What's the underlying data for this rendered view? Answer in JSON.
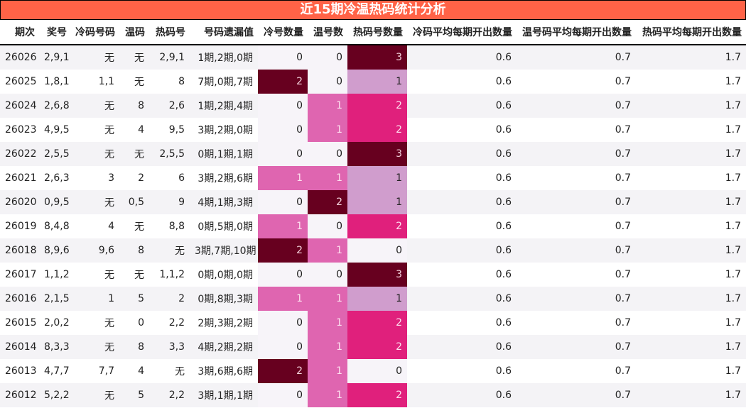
{
  "title": "近15期冷温热码统计分析",
  "headers": [
    "期次",
    "奖号",
    "冷码号码",
    "温码",
    "热码号",
    "号码遗漏值",
    "冷号数量",
    "温号数",
    "热码号数量",
    "冷码平均每期开出数量",
    "温号码平均每期开出数量",
    "热码平均每期开出数量"
  ],
  "colors": {
    "title_bg": "#ff6347",
    "dark": "#67001f",
    "pink": "#df65b0",
    "magenta": "#e0207c",
    "lavender": "#d09dcd"
  },
  "rows": [
    [
      "26026",
      "2,9,1",
      "无",
      "无",
      "2,9,1",
      "1期,2期,0期",
      "0",
      "0",
      "3",
      "0.6",
      "0.7",
      "1.7"
    ],
    [
      "26025",
      "1,8,1",
      "1,1",
      "无",
      "8",
      "7期,0期,7期",
      "2",
      "0",
      "1",
      "0.6",
      "0.7",
      "1.7"
    ],
    [
      "26024",
      "2,6,8",
      "无",
      "8",
      "2,6",
      "1期,2期,4期",
      "0",
      "1",
      "2",
      "0.6",
      "0.7",
      "1.7"
    ],
    [
      "26023",
      "4,9,5",
      "无",
      "4",
      "9,5",
      "3期,2期,0期",
      "0",
      "1",
      "2",
      "0.6",
      "0.7",
      "1.7"
    ],
    [
      "26022",
      "2,5,5",
      "无",
      "无",
      "2,5,5",
      "0期,1期,1期",
      "0",
      "0",
      "3",
      "0.6",
      "0.7",
      "1.7"
    ],
    [
      "26021",
      "2,6,3",
      "3",
      "2",
      "6",
      "3期,2期,6期",
      "1",
      "1",
      "1",
      "0.6",
      "0.7",
      "1.7"
    ],
    [
      "26020",
      "0,9,5",
      "无",
      "0,5",
      "9",
      "4期,1期,3期",
      "0",
      "2",
      "1",
      "0.6",
      "0.7",
      "1.7"
    ],
    [
      "26019",
      "8,4,8",
      "4",
      "无",
      "8,8",
      "0期,5期,0期",
      "1",
      "0",
      "2",
      "0.6",
      "0.7",
      "1.7"
    ],
    [
      "26018",
      "8,9,6",
      "9,6",
      "8",
      "无",
      "3期,7期,10期",
      "2",
      "1",
      "0",
      "0.6",
      "0.7",
      "1.7"
    ],
    [
      "26017",
      "1,1,2",
      "无",
      "无",
      "1,1,2",
      "0期,0期,0期",
      "0",
      "0",
      "3",
      "0.6",
      "0.7",
      "1.7"
    ],
    [
      "26016",
      "2,1,5",
      "1",
      "5",
      "2",
      "0期,8期,3期",
      "1",
      "1",
      "1",
      "0.6",
      "0.7",
      "1.7"
    ],
    [
      "26015",
      "2,0,2",
      "无",
      "0",
      "2,2",
      "2期,3期,2期",
      "0",
      "1",
      "2",
      "0.6",
      "0.7",
      "1.7"
    ],
    [
      "26014",
      "8,3,3",
      "无",
      "8",
      "3,3",
      "4期,2期,2期",
      "0",
      "1",
      "2",
      "0.6",
      "0.7",
      "1.7"
    ],
    [
      "26013",
      "4,7,7",
      "7,7",
      "4",
      "无",
      "3期,6期,6期",
      "2",
      "1",
      "0",
      "0.6",
      "0.7",
      "1.7"
    ],
    [
      "26012",
      "5,2,2",
      "无",
      "5",
      "2,2",
      "3期,1期,1期",
      "0",
      "1",
      "2",
      "0.6",
      "0.7",
      "1.7"
    ]
  ]
}
